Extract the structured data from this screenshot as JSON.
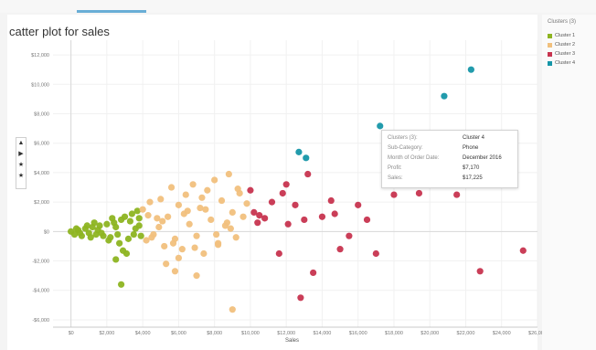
{
  "header": {
    "title": "catter plot for sales"
  },
  "legend": {
    "title": "Clusters (3)",
    "items": [
      {
        "label": "Cluster 1",
        "color": "#8db421"
      },
      {
        "label": "Cluster 2",
        "color": "#f1c07d"
      },
      {
        "label": "Cluster 3",
        "color": "#c7344f"
      },
      {
        "label": "Cluster 4",
        "color": "#1696a8"
      }
    ]
  },
  "tools": {
    "icons": [
      "arrow-up-icon",
      "arrow-right-icon",
      "star-icon",
      "star-icon",
      "star-icon"
    ],
    "glyphs": [
      "▲",
      "▶",
      "★",
      "★",
      "★"
    ]
  },
  "tooltip": {
    "rows": [
      {
        "key": "Clusters (3):",
        "value": "Cluster 4"
      },
      {
        "key": "Sub-Category:",
        "value": "Phone"
      },
      {
        "key": "Month of Order Date:",
        "value": "December 2016"
      },
      {
        "key": "Profit:",
        "value": "$7,170"
      },
      {
        "key": "Sales:",
        "value": "$17,225"
      }
    ]
  },
  "chart_data": {
    "type": "scatter",
    "title": "catter plot for sales",
    "xlabel": "Sales",
    "ylabel": "",
    "xlim": [
      -1000,
      26000
    ],
    "ylim": [
      -6500,
      13000
    ],
    "x_ticks": [
      0,
      2000,
      4000,
      6000,
      8000,
      10000,
      12000,
      14000,
      16000,
      18000,
      20000,
      22000,
      24000,
      26000
    ],
    "x_tick_labels": [
      "$0",
      "$2,000",
      "$4,000",
      "$6,000",
      "$8,000",
      "$10,000",
      "$12,000",
      "$14,000",
      "$16,000",
      "$18,000",
      "$20,000",
      "$22,000",
      "$24,000",
      "$26,000"
    ],
    "y_ticks": [
      12000,
      10000,
      8000,
      6000,
      4000,
      2000,
      0,
      -2000,
      -4000,
      -6000
    ],
    "y_tick_labels": [
      "$12,000",
      "$10,000",
      "$8,000",
      "$6,000",
      "$4,000",
      "$2,000",
      "$0",
      "-$2,000",
      "-$4,000",
      "-$6,000"
    ],
    "grid": true,
    "legend_position": "right",
    "series": [
      {
        "name": "Cluster 1",
        "color": "#8db421",
        "points": [
          [
            0,
            0
          ],
          [
            200,
            -200
          ],
          [
            400,
            100
          ],
          [
            600,
            -300
          ],
          [
            800,
            200
          ],
          [
            1000,
            -100
          ],
          [
            1200,
            300
          ],
          [
            1400,
            -200
          ],
          [
            1600,
            400
          ],
          [
            1800,
            -300
          ],
          [
            2000,
            500
          ],
          [
            2200,
            -400
          ],
          [
            2400,
            600
          ],
          [
            2600,
            -200
          ],
          [
            2800,
            800
          ],
          [
            3000,
            1000
          ],
          [
            3200,
            -500
          ],
          [
            3400,
            1200
          ],
          [
            3600,
            200
          ],
          [
            3800,
            900
          ],
          [
            3900,
            -300
          ],
          [
            3700,
            1400
          ],
          [
            3300,
            700
          ],
          [
            2500,
            300
          ],
          [
            1500,
            100
          ],
          [
            900,
            400
          ],
          [
            500,
            -100
          ],
          [
            300,
            200
          ],
          [
            1100,
            -400
          ],
          [
            2100,
            -600
          ],
          [
            2700,
            -800
          ],
          [
            3100,
            -1500
          ],
          [
            2500,
            -1900
          ],
          [
            2800,
            -3600
          ],
          [
            2900,
            -1300
          ],
          [
            1300,
            600
          ],
          [
            1700,
            -100
          ],
          [
            2300,
            900
          ],
          [
            3500,
            -200
          ],
          [
            3800,
            400
          ]
        ]
      },
      {
        "name": "Cluster 2",
        "color": "#f1c07d",
        "points": [
          [
            4000,
            1500
          ],
          [
            4200,
            -600
          ],
          [
            4400,
            2000
          ],
          [
            4600,
            -200
          ],
          [
            4800,
            900
          ],
          [
            5000,
            2200
          ],
          [
            5200,
            -1000
          ],
          [
            5400,
            1000
          ],
          [
            5600,
            3000
          ],
          [
            5800,
            -500
          ],
          [
            6000,
            1800
          ],
          [
            6200,
            -1200
          ],
          [
            6400,
            2500
          ],
          [
            6600,
            500
          ],
          [
            6800,
            3200
          ],
          [
            7000,
            -300
          ],
          [
            7200,
            1600
          ],
          [
            7400,
            -1500
          ],
          [
            7600,
            2800
          ],
          [
            7800,
            800
          ],
          [
            8000,
            3500
          ],
          [
            8200,
            -800
          ],
          [
            8400,
            2100
          ],
          [
            8600,
            400
          ],
          [
            8800,
            3900
          ],
          [
            9000,
            1300
          ],
          [
            9200,
            -400
          ],
          [
            9400,
            2600
          ],
          [
            9600,
            1000
          ],
          [
            9800,
            1900
          ],
          [
            4500,
            -400
          ],
          [
            5100,
            700
          ],
          [
            5700,
            -800
          ],
          [
            6300,
            1200
          ],
          [
            6900,
            -1100
          ],
          [
            7500,
            1500
          ],
          [
            8100,
            -200
          ],
          [
            8700,
            600
          ],
          [
            9300,
            2900
          ],
          [
            5300,
            -2200
          ],
          [
            5800,
            -2700
          ],
          [
            7000,
            -3000
          ],
          [
            9000,
            -5300
          ],
          [
            6000,
            -1800
          ],
          [
            8200,
            -900
          ],
          [
            4300,
            1100
          ],
          [
            4900,
            300
          ],
          [
            6500,
            1400
          ],
          [
            7300,
            2300
          ],
          [
            8900,
            200
          ]
        ]
      },
      {
        "name": "Cluster 3",
        "color": "#c7344f",
        "points": [
          [
            10000,
            2800
          ],
          [
            10200,
            1300
          ],
          [
            10500,
            1100
          ],
          [
            10800,
            900
          ],
          [
            11200,
            2000
          ],
          [
            11600,
            -1500
          ],
          [
            12000,
            3200
          ],
          [
            12500,
            1800
          ],
          [
            13000,
            800
          ],
          [
            13500,
            -2800
          ],
          [
            14000,
            1000
          ],
          [
            14500,
            2100
          ],
          [
            15000,
            -1200
          ],
          [
            15500,
            -300
          ],
          [
            16000,
            1800
          ],
          [
            16500,
            800
          ],
          [
            17000,
            -1500
          ],
          [
            18000,
            2500
          ],
          [
            12800,
            -4500
          ],
          [
            11800,
            2600
          ],
          [
            13200,
            3900
          ],
          [
            12100,
            500
          ],
          [
            19400,
            2600
          ],
          [
            21500,
            2500
          ],
          [
            22800,
            -2700
          ],
          [
            25200,
            -1300
          ],
          [
            10400,
            600
          ],
          [
            14700,
            1200
          ]
        ]
      },
      {
        "name": "Cluster 4",
        "color": "#1696a8",
        "points": [
          [
            12700,
            5400
          ],
          [
            13100,
            5000
          ],
          [
            17225,
            7170
          ],
          [
            20800,
            9200
          ],
          [
            22300,
            11000
          ]
        ]
      }
    ]
  }
}
